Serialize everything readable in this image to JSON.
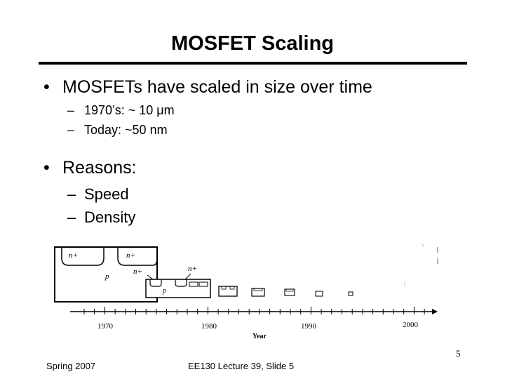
{
  "slide": {
    "title": "MOSFET Scaling",
    "bullets": [
      {
        "text": "MOSFETs have scaled in size over time",
        "subs": [
          "1970’s: ~ 10 μm",
          "Today: ~50 nm"
        ]
      },
      {
        "text": "Reasons:",
        "subs": [
          "Speed",
          "Density"
        ]
      }
    ],
    "bullet_mark": "•",
    "dash_mark": "–"
  },
  "figure": {
    "labels": {
      "n_plus": "n+",
      "p": "p",
      "axis_title": "Year"
    },
    "axis_ticks": [
      "1970",
      "1980",
      "1990",
      "2000"
    ]
  },
  "footer": {
    "left": "Spring 2007",
    "center": "EE130 Lecture 39, Slide 5",
    "page_number": "5"
  }
}
